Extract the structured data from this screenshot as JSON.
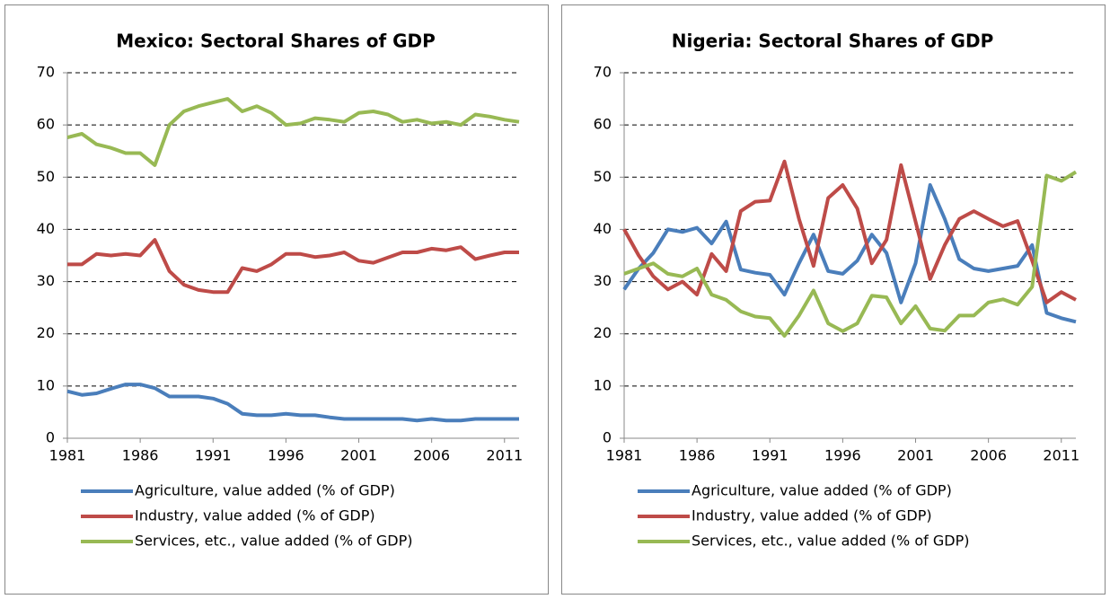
{
  "chart_data": [
    {
      "type": "line",
      "title": "Mexico: Sectoral Shares of GDP",
      "x": [
        1981,
        1982,
        1983,
        1984,
        1985,
        1986,
        1987,
        1988,
        1989,
        1990,
        1991,
        1992,
        1993,
        1994,
        1995,
        1996,
        1997,
        1998,
        1999,
        2000,
        2001,
        2002,
        2003,
        2004,
        2005,
        2006,
        2007,
        2008,
        2009,
        2010,
        2011,
        2012
      ],
      "xlim": [
        1981,
        2012
      ],
      "xticks": [
        1981,
        1986,
        1991,
        1996,
        2001,
        2006,
        2011
      ],
      "ylim": [
        0,
        70
      ],
      "yticks": [
        0,
        10,
        20,
        30,
        40,
        50,
        60,
        70
      ],
      "grid": true,
      "legend": "bottom",
      "series": [
        {
          "name": "Agriculture, value added (% of GDP)",
          "color": "#4a7ebb",
          "values": [
            9,
            8.3,
            8.6,
            9.5,
            10.3,
            10.3,
            9.6,
            8,
            8,
            8,
            7.6,
            6.6,
            4.7,
            4.4,
            4.4,
            4.7,
            4.4,
            4.4,
            4,
            3.7,
            3.7,
            3.7,
            3.7,
            3.7,
            3.4,
            3.7,
            3.4,
            3.4,
            3.7,
            3.7,
            3.7,
            3.7
          ]
        },
        {
          "name": "Industry, value added (% of GDP)",
          "color": "#be4b48",
          "values": [
            33.3,
            33.3,
            35.3,
            35,
            35.3,
            35,
            38,
            32,
            29.4,
            28.4,
            28,
            28,
            32.6,
            32,
            33.3,
            35.3,
            35.3,
            34.7,
            35,
            35.6,
            34,
            33.6,
            34.6,
            35.6,
            35.6,
            36.3,
            36,
            36.6,
            34.3,
            35,
            35.6,
            35.6
          ]
        },
        {
          "name": "Services, etc., value added (% of GDP)",
          "color": "#98b954",
          "values": [
            57.6,
            58.3,
            56.3,
            55.6,
            54.6,
            54.6,
            52.3,
            60,
            62.6,
            63.6,
            64.3,
            65,
            62.6,
            63.6,
            62.3,
            60,
            60.3,
            61.3,
            61,
            60.6,
            62.3,
            62.6,
            62,
            60.6,
            61,
            60.3,
            60.6,
            60,
            62,
            61.6,
            61,
            60.6
          ]
        }
      ]
    },
    {
      "type": "line",
      "title": "Nigeria: Sectoral Shares of GDP",
      "x": [
        1981,
        1982,
        1983,
        1984,
        1985,
        1986,
        1987,
        1988,
        1989,
        1990,
        1991,
        1992,
        1993,
        1994,
        1995,
        1996,
        1997,
        1998,
        1999,
        2000,
        2001,
        2002,
        2003,
        2004,
        2005,
        2006,
        2007,
        2008,
        2009,
        2010,
        2011,
        2012
      ],
      "xlim": [
        1981,
        2012
      ],
      "xticks": [
        1981,
        1986,
        1991,
        1996,
        2001,
        2006,
        2011
      ],
      "ylim": [
        0,
        70
      ],
      "yticks": [
        0,
        10,
        20,
        30,
        40,
        50,
        60,
        70
      ],
      "grid": true,
      "legend": "bottom",
      "series": [
        {
          "name": "Agriculture, value added (% of GDP)",
          "color": "#4a7ebb",
          "values": [
            28.5,
            32.5,
            35.5,
            40,
            39.5,
            40.3,
            37.3,
            41.5,
            32.3,
            31.7,
            31.3,
            27.5,
            33.5,
            39,
            32,
            31.5,
            34,
            39,
            35.5,
            26,
            33.5,
            48.5,
            42,
            34.3,
            32.5,
            32,
            32.5,
            33,
            37,
            24,
            23,
            22.3
          ]
        },
        {
          "name": "Industry, value added (% of GDP)",
          "color": "#be4b48",
          "values": [
            40,
            35,
            31,
            28.5,
            30,
            27.5,
            35.3,
            32,
            43.5,
            45.3,
            45.5,
            53,
            42,
            33,
            46,
            48.5,
            44,
            33.5,
            38,
            52.3,
            41.5,
            30.5,
            37,
            42,
            43.5,
            42,
            40.6,
            41.6,
            34,
            26,
            28,
            26.5
          ]
        },
        {
          "name": "Services, etc., value added (% of GDP)",
          "color": "#98b954",
          "values": [
            31.5,
            32.5,
            33.5,
            31.5,
            31,
            32.5,
            27.5,
            26.5,
            24.3,
            23.3,
            23,
            19.6,
            23.5,
            28.3,
            22,
            20.5,
            22,
            27.3,
            27,
            22,
            25.3,
            21,
            20.6,
            23.5,
            23.5,
            26,
            26.6,
            25.6,
            29,
            50.3,
            49.3,
            51
          ]
        }
      ]
    }
  ]
}
